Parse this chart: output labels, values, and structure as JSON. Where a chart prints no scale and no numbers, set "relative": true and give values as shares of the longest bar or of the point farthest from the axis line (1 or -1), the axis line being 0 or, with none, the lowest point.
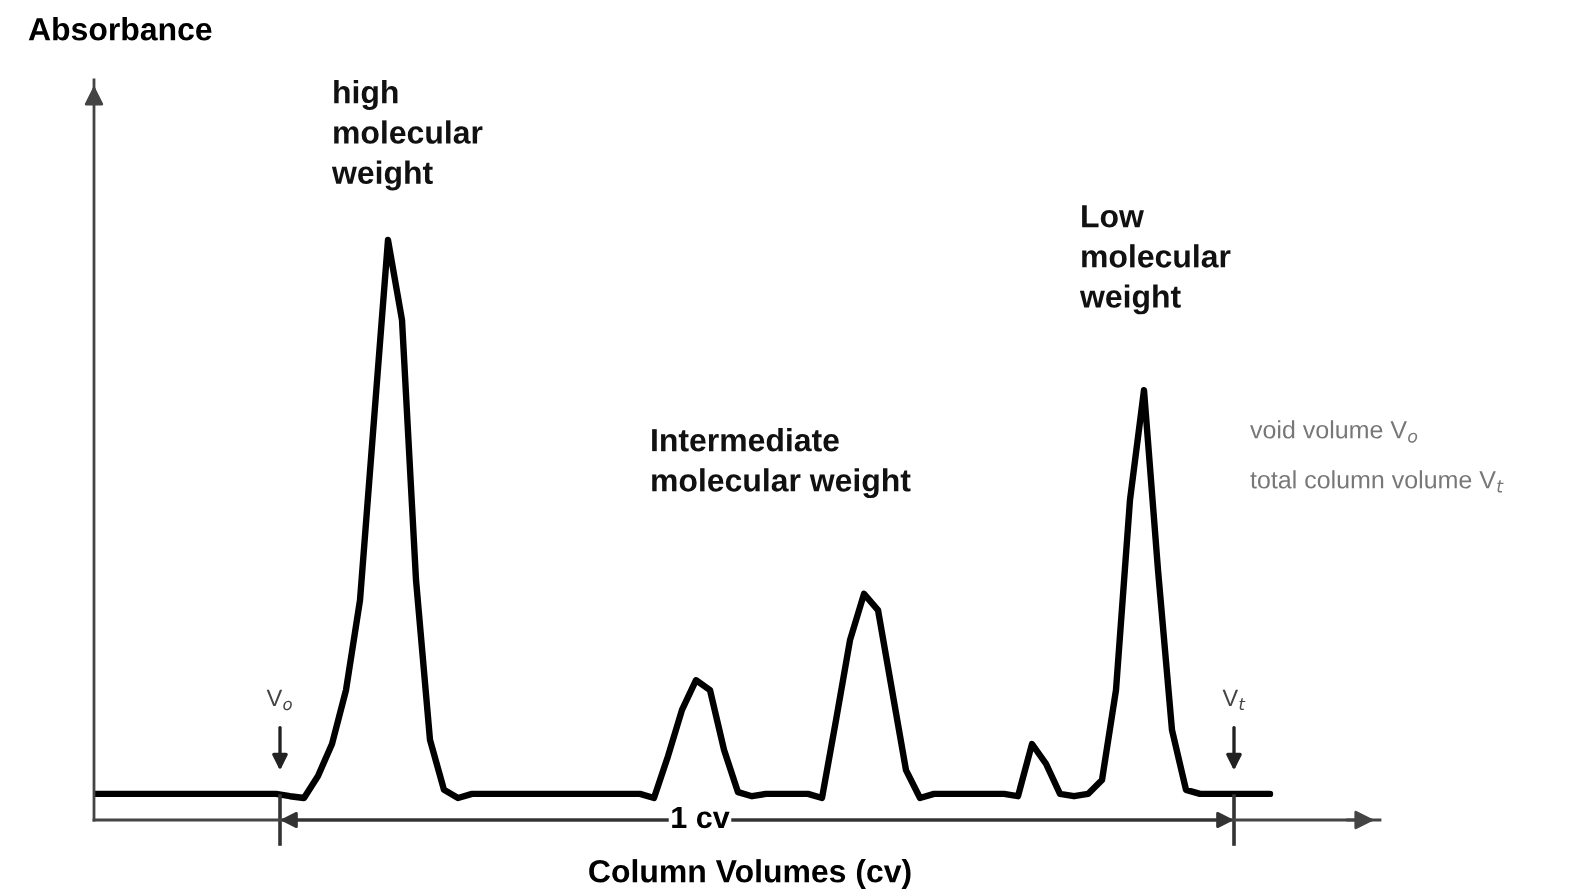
{
  "chart_data": {
    "type": "line",
    "relative": true,
    "xlabel": "Column Volumes (cv)",
    "categories": [
      null,
      null,
      null,
      null,
      null,
      null,
      null,
      null,
      null,
      null,
      null,
      null,
      null,
      null,
      null,
      null,
      null,
      null,
      null,
      null,
      null,
      null,
      null,
      null,
      null,
      null,
      null,
      null,
      null,
      null,
      null,
      null,
      null,
      null,
      null,
      null,
      null,
      null,
      null,
      null,
      null,
      null,
      null,
      null,
      null,
      null,
      null,
      null,
      null,
      null,
      null,
      null,
      null,
      null,
      null,
      null,
      null,
      null,
      null,
      null,
      null,
      null,
      null,
      null,
      null,
      null,
      null,
      null,
      null,
      null,
      null,
      null,
      null,
      null,
      null,
      null,
      null,
      null,
      null,
      null,
      null,
      null,
      null,
      null,
      null
    ],
    "series": [
      {
        "color": "#000000",
        "values": [
          0.045,
          0.045,
          0.045,
          0.045,
          0.045,
          0.045,
          0.045,
          0.045,
          0.045,
          0.045,
          0.045,
          0.045,
          0.045,
          0.045,
          0.041,
          0.038,
          0.076,
          0.131,
          0.224,
          0.379,
          0.69,
          1.0,
          0.862,
          0.414,
          0.138,
          0.052,
          0.038,
          0.045,
          0.045,
          0.045,
          0.045,
          0.045,
          0.045,
          0.045,
          0.045,
          0.045,
          0.045,
          0.045,
          0.045,
          0.045,
          0.038,
          0.11,
          0.19,
          0.241,
          0.224,
          0.121,
          0.048,
          0.041,
          0.045,
          0.045,
          0.045,
          0.045,
          0.038,
          0.172,
          0.31,
          0.39,
          0.362,
          0.224,
          0.086,
          0.038,
          0.045,
          0.045,
          0.045,
          0.045,
          0.045,
          0.045,
          0.041,
          0.131,
          0.097,
          0.045,
          0.041,
          0.045,
          0.069,
          0.224,
          0.552,
          0.741,
          0.431,
          0.155,
          0.052,
          0.045,
          0.045,
          0.045,
          0.045,
          0.045,
          0.045
        ]
      }
    ],
    "annotations": [
      "high\nmolecular\nweight",
      "Intermediate\nmolecular weight",
      "Low\nmolecular\nweight",
      "V$_{o}$",
      "V$_{t}$",
      "1 cv",
      "void volume V$_{o}$",
      "total column volume V$_{t}$",
      "Absorbance"
    ]
  }
}
